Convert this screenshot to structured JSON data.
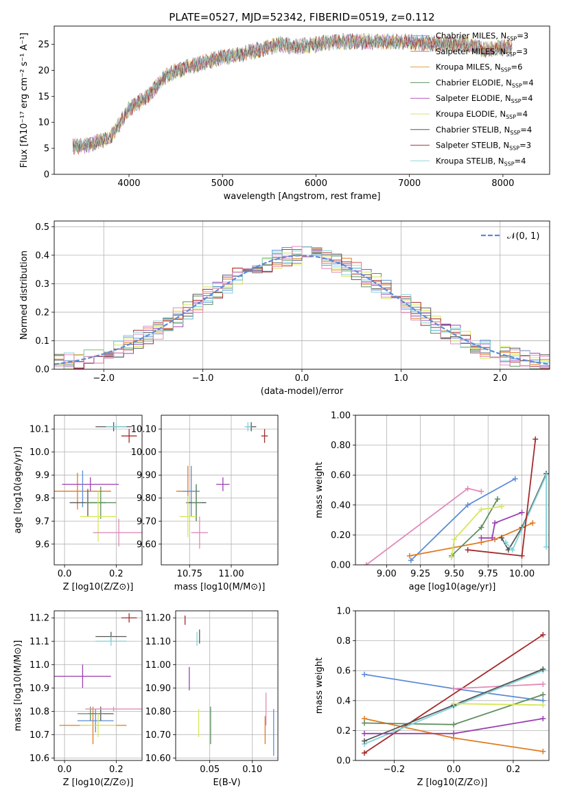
{
  "figure": {
    "title": "PLATE=0527, MJD=52342, FIBERID=0519, z=0.112"
  },
  "legend_sup": "SSP",
  "chart_data": [
    {
      "id": "spectrum",
      "type": "line",
      "xlabel": "wavelength [Angstrom, rest frame]",
      "ylabel": "Flux [fλ10⁻¹⁷ erg cm⁻² s⁻¹ A⁻¹]",
      "xlim": [
        3200,
        8500
      ],
      "ylim": [
        0,
        28.5
      ],
      "xticks": [
        4000,
        5000,
        6000,
        7000,
        8000
      ],
      "yticks": [
        0,
        5,
        10,
        15,
        20,
        25
      ],
      "grid": false,
      "legend_position": "right",
      "x": [
        3400,
        3600,
        3800,
        4000,
        4200,
        4400,
        4600,
        4800,
        5000,
        5200,
        5400,
        5600,
        5800,
        6000,
        6200,
        6400,
        6600,
        6800,
        7000,
        7200,
        7400,
        7600,
        7800,
        8100
      ],
      "y": [
        5.3,
        5.8,
        7.0,
        12.5,
        15.0,
        19.0,
        20.5,
        21.5,
        22.5,
        23.0,
        24.0,
        25.0,
        24.5,
        25.0,
        25.5,
        25.5,
        25.5,
        25.5,
        25.5,
        25.2,
        25.0,
        25.0,
        24.0,
        24.5
      ],
      "series": [
        {
          "name": "Chabrier MILES",
          "nssp": "=3",
          "color": "#6f8fd6"
        },
        {
          "name": "Salpeter MILES",
          "nssp": "=3",
          "color": "#c97070"
        },
        {
          "name": "Kroupa MILES",
          "nssp": "=6",
          "color": "#e0a040"
        },
        {
          "name": "Chabrier ELODIE",
          "nssp": "=4",
          "color": "#5f8f5f"
        },
        {
          "name": "Salpeter ELODIE",
          "nssp": "=4",
          "color": "#b056b8"
        },
        {
          "name": "Kroupa ELODIE",
          "nssp": "=4",
          "color": "#d8e070"
        },
        {
          "name": "Chabrier STELIB",
          "nssp": "=4",
          "color": "#555555"
        },
        {
          "name": "Salpeter STELIB",
          "nssp": "=3",
          "color": "#b03030"
        },
        {
          "name": "Kroupa STELIB",
          "nssp": "=4",
          "color": "#8fd8dc"
        }
      ]
    },
    {
      "id": "residuals",
      "type": "line",
      "xlabel": "(data-model)/error",
      "ylabel": "Normed distribution",
      "xlim": [
        -2.5,
        2.5
      ],
      "ylim": [
        0,
        0.52
      ],
      "xticks": [
        -2,
        -1,
        0,
        1,
        2
      ],
      "yticks": [
        0.0,
        0.1,
        0.2,
        0.3,
        0.4,
        0.5
      ],
      "grid": true,
      "legend_position": "top-right",
      "gaussian_label": "𝒩(0, 1)",
      "gaussian_color": "#5b8bd8",
      "hist_colors": [
        "#5b8bd8",
        "#e07a20",
        "#5c8f5c",
        "#9b3fb0",
        "#d6e655",
        "#555555",
        "#a52a2a",
        "#7fd3d8",
        "#e08ab8"
      ]
    },
    {
      "id": "age_vs_Z",
      "type": "scatter",
      "xlabel": "Z [log10(Z/Z⊙)]",
      "ylabel": "age  [log10(age/yr)]",
      "xlim": [
        -0.04,
        0.3
      ],
      "ylim": [
        9.51,
        10.16
      ],
      "xticks": [
        0.0,
        0.2
      ],
      "yticks": [
        9.6,
        9.7,
        9.8,
        9.9,
        10.0,
        10.1
      ],
      "grid": true,
      "points": [
        {
          "x": 0.05,
          "y": 9.83,
          "xerr": 0.13,
          "yerr": 0.08,
          "color": "#e07a20"
        },
        {
          "x": 0.1,
          "y": 9.86,
          "xerr": 0.11,
          "yerr": 0.03,
          "color": "#9b3fb0"
        },
        {
          "x": 0.07,
          "y": 9.84,
          "xerr": 0.0,
          "yerr": 0.08,
          "color": "#5b8bd8"
        },
        {
          "x": 0.09,
          "y": 9.78,
          "xerr": 0.07,
          "yerr": 0.06,
          "color": "#555555"
        },
        {
          "x": 0.14,
          "y": 9.78,
          "xerr": 0.06,
          "yerr": 0.07,
          "color": "#5c8f5c"
        },
        {
          "x": 0.13,
          "y": 9.72,
          "xerr": 0.07,
          "yerr": 0.11,
          "color": "#d6e655"
        },
        {
          "x": 0.21,
          "y": 9.65,
          "xerr": 0.1,
          "yerr": 0.06,
          "color": "#e08ab8"
        },
        {
          "x": 0.19,
          "y": 10.11,
          "xerr": 0.07,
          "yerr": 0.02,
          "color": "#555555"
        },
        {
          "x": 0.2,
          "y": 10.11,
          "xerr": 0.04,
          "yerr": 0.01,
          "color": "#7fd3d8"
        },
        {
          "x": 0.25,
          "y": 10.07,
          "xerr": 0.03,
          "yerr": 0.03,
          "color": "#a52a2a"
        }
      ]
    },
    {
      "id": "age_vs_mass",
      "type": "scatter",
      "xlabel": "mass [log10(M/M⊙)]",
      "ylabel": "",
      "xlim": [
        10.58,
        11.28
      ],
      "ylim": [
        9.51,
        10.16
      ],
      "xticks": [
        10.75,
        11.0
      ],
      "yticks": [
        9.6,
        9.7,
        9.8,
        9.9,
        10.0,
        10.1
      ],
      "grid": true,
      "points": [
        {
          "x": 10.74,
          "y": 9.83,
          "xerr": 0.07,
          "yerr": 0.11,
          "color": "#e07a20"
        },
        {
          "x": 10.95,
          "y": 9.86,
          "xerr": 0.04,
          "yerr": 0.03,
          "color": "#9b3fb0"
        },
        {
          "x": 10.76,
          "y": 9.83,
          "xerr": 0.05,
          "yerr": 0.11,
          "color": "#5b8bd8"
        },
        {
          "x": 10.79,
          "y": 9.78,
          "xerr": 0.06,
          "yerr": 0.08,
          "color": "#555555"
        },
        {
          "x": 10.79,
          "y": 9.78,
          "xerr": 0.03,
          "yerr": 0.08,
          "color": "#5c8f5c"
        },
        {
          "x": 10.74,
          "y": 9.72,
          "xerr": 0.05,
          "yerr": 0.09,
          "color": "#d6e655"
        },
        {
          "x": 10.81,
          "y": 9.65,
          "xerr": 0.05,
          "yerr": 0.07,
          "color": "#e08ab8"
        },
        {
          "x": 11.12,
          "y": 10.11,
          "xerr": 0.03,
          "yerr": 0.02,
          "color": "#555555"
        },
        {
          "x": 11.1,
          "y": 10.11,
          "xerr": 0.02,
          "yerr": 0.02,
          "color": "#7fd3d8"
        },
        {
          "x": 11.2,
          "y": 10.07,
          "xerr": 0.02,
          "yerr": 0.03,
          "color": "#a52a2a"
        }
      ]
    },
    {
      "id": "weight_vs_age",
      "type": "line",
      "xlabel": "age  [log10(age/yr)]",
      "ylabel": "mass weight",
      "xlim": [
        8.77,
        10.2
      ],
      "ylim": [
        0,
        1.0
      ],
      "xticks": [
        9.0,
        9.25,
        9.5,
        9.75,
        10.0
      ],
      "yticks": [
        0.0,
        0.2,
        0.4,
        0.6,
        0.8,
        1.0
      ],
      "grid": true,
      "series": [
        {
          "color": "#e08ab8",
          "x": [
            8.85,
            9.6,
            9.7
          ],
          "y": [
            0.0,
            0.51,
            0.49
          ]
        },
        {
          "color": "#5b8bd8",
          "x": [
            9.18,
            9.6,
            9.95
          ],
          "y": [
            0.03,
            0.4,
            0.575
          ]
        },
        {
          "color": "#e07a20",
          "x": [
            9.17,
            9.7,
            9.8,
            10.08
          ],
          "y": [
            0.06,
            0.15,
            0.17,
            0.28
          ]
        },
        {
          "color": "#5c8f5c",
          "x": [
            9.48,
            9.7,
            9.82
          ],
          "y": [
            0.06,
            0.25,
            0.44
          ]
        },
        {
          "color": "#d6e655",
          "x": [
            9.48,
            9.5,
            9.7,
            9.85
          ],
          "y": [
            0.05,
            0.17,
            0.37,
            0.39
          ]
        },
        {
          "color": "#9b3fb0",
          "x": [
            9.7,
            9.78,
            9.8,
            10.0
          ],
          "y": [
            0.18,
            0.18,
            0.28,
            0.35
          ]
        },
        {
          "color": "#555555",
          "x": [
            9.85,
            9.9,
            10.0,
            10.18
          ],
          "y": [
            0.18,
            0.1,
            0.25,
            0.61
          ]
        },
        {
          "color": "#7fd3d8",
          "x": [
            9.88,
            9.93,
            10.18,
            10.18
          ],
          "y": [
            0.15,
            0.1,
            0.6,
            0.12
          ]
        },
        {
          "color": "#a52a2a",
          "x": [
            9.6,
            10.0,
            10.1
          ],
          "y": [
            0.1,
            0.06,
            0.84
          ]
        }
      ]
    },
    {
      "id": "mass_vs_Z",
      "type": "scatter",
      "xlabel": "Z [log10(Z/Z⊙)]",
      "ylabel": "mass [log10(M/M⊙)]",
      "xlim": [
        -0.04,
        0.3
      ],
      "ylim": [
        10.59,
        11.23
      ],
      "xticks": [
        0.0,
        0.2
      ],
      "yticks": [
        10.6,
        10.7,
        10.8,
        10.9,
        11.0,
        11.1,
        11.2
      ],
      "grid": true,
      "points": [
        {
          "x": 0.11,
          "y": 10.74,
          "xerr": 0.13,
          "yerr": 0.08,
          "color": "#e07a20"
        },
        {
          "x": 0.07,
          "y": 10.95,
          "xerr": 0.11,
          "yerr": 0.05,
          "color": "#9b3fb0"
        },
        {
          "x": 0.12,
          "y": 10.76,
          "xerr": 0.07,
          "yerr": 0.05,
          "color": "#5b8bd8"
        },
        {
          "x": 0.14,
          "y": 10.79,
          "xerr": 0.05,
          "yerr": 0.03,
          "color": "#555555"
        },
        {
          "x": 0.1,
          "y": 10.79,
          "xerr": 0.05,
          "yerr": 0.03,
          "color": "#5c8f5c"
        },
        {
          "x": 0.13,
          "y": 10.74,
          "xerr": 0.07,
          "yerr": 0.05,
          "color": "#d6e655"
        },
        {
          "x": 0.19,
          "y": 10.81,
          "xerr": 0.11,
          "yerr": 0.01,
          "color": "#e08ab8"
        },
        {
          "x": 0.18,
          "y": 11.12,
          "xerr": 0.06,
          "yerr": 0.02,
          "color": "#555555"
        },
        {
          "x": 0.18,
          "y": 11.1,
          "xerr": 0.06,
          "yerr": 0.02,
          "color": "#7fd3d8"
        },
        {
          "x": 0.25,
          "y": 11.2,
          "xerr": 0.03,
          "yerr": 0.02,
          "color": "#a52a2a"
        }
      ]
    },
    {
      "id": "mass_vs_ebv",
      "type": "scatter",
      "xlabel": "E(B-V)",
      "ylabel": "",
      "xlim": [
        0.01,
        0.13
      ],
      "ylim": [
        10.59,
        11.23
      ],
      "xticks": [
        0.05,
        0.1
      ],
      "yticks": [
        10.6,
        10.7,
        10.8,
        10.9,
        11.0,
        11.1,
        11.2
      ],
      "grid": true,
      "points": [
        {
          "x": 0.115,
          "y": 10.72,
          "xerr": 0,
          "yerr": 0.06,
          "color": "#e07a20"
        },
        {
          "x": 0.026,
          "y": 10.94,
          "xerr": 0,
          "yerr": 0.05,
          "color": "#9b3fb0"
        },
        {
          "x": 0.125,
          "y": 10.71,
          "xerr": 0,
          "yerr": 0.1,
          "color": "#5b8bd8"
        },
        {
          "x": 0.038,
          "y": 11.12,
          "xerr": 0,
          "yerr": 0.03,
          "color": "#555555"
        },
        {
          "x": 0.051,
          "y": 10.74,
          "xerr": 0,
          "yerr": 0.08,
          "color": "#5c8f5c"
        },
        {
          "x": 0.037,
          "y": 10.75,
          "xerr": 0,
          "yerr": 0.06,
          "color": "#d6e655"
        },
        {
          "x": 0.116,
          "y": 10.81,
          "xerr": 0,
          "yerr": 0.07,
          "color": "#e08ab8"
        },
        {
          "x": 0.035,
          "y": 11.11,
          "xerr": 0,
          "yerr": 0.03,
          "color": "#7fd3d8"
        },
        {
          "x": 0.021,
          "y": 11.19,
          "xerr": 0,
          "yerr": 0.02,
          "color": "#a52a2a"
        }
      ]
    },
    {
      "id": "weight_vs_Z",
      "type": "line",
      "xlabel": "Z [log10(Z/Z⊙)]",
      "ylabel": "mass weight",
      "xlim": [
        -0.33,
        0.32
      ],
      "ylim": [
        0,
        1.0
      ],
      "xticks": [
        -0.2,
        0.0,
        0.2
      ],
      "yticks": [
        0.0,
        0.2,
        0.4,
        0.6,
        0.8,
        1.0
      ],
      "grid": true,
      "series": [
        {
          "color": "#5b8bd8",
          "x": [
            -0.3,
            0.0,
            0.3
          ],
          "y": [
            0.575,
            0.48,
            0.4
          ]
        },
        {
          "color": "#a52a2a",
          "x": [
            -0.3,
            0.3
          ],
          "y": [
            0.05,
            0.84
          ]
        },
        {
          "color": "#e08ab8",
          "x": [
            0.0,
            0.3
          ],
          "y": [
            0.48,
            0.51
          ]
        },
        {
          "color": "#e07a20",
          "x": [
            -0.3,
            0.0,
            0.3
          ],
          "y": [
            0.28,
            0.15,
            0.06
          ]
        },
        {
          "color": "#5c8f5c",
          "x": [
            -0.3,
            0.0,
            0.3
          ],
          "y": [
            0.25,
            0.24,
            0.44
          ]
        },
        {
          "color": "#7fd3d8",
          "x": [
            -0.3,
            0.0,
            0.3
          ],
          "y": [
            0.11,
            0.36,
            0.6
          ]
        },
        {
          "color": "#555555",
          "x": [
            -0.3,
            0.0,
            0.3
          ],
          "y": [
            0.13,
            0.37,
            0.61
          ]
        },
        {
          "color": "#d6e655",
          "x": [
            0.0,
            0.3
          ],
          "y": [
            0.38,
            0.37
          ]
        },
        {
          "color": "#9b3fb0",
          "x": [
            -0.3,
            0.0,
            0.3
          ],
          "y": [
            0.18,
            0.18,
            0.28
          ]
        }
      ]
    }
  ]
}
